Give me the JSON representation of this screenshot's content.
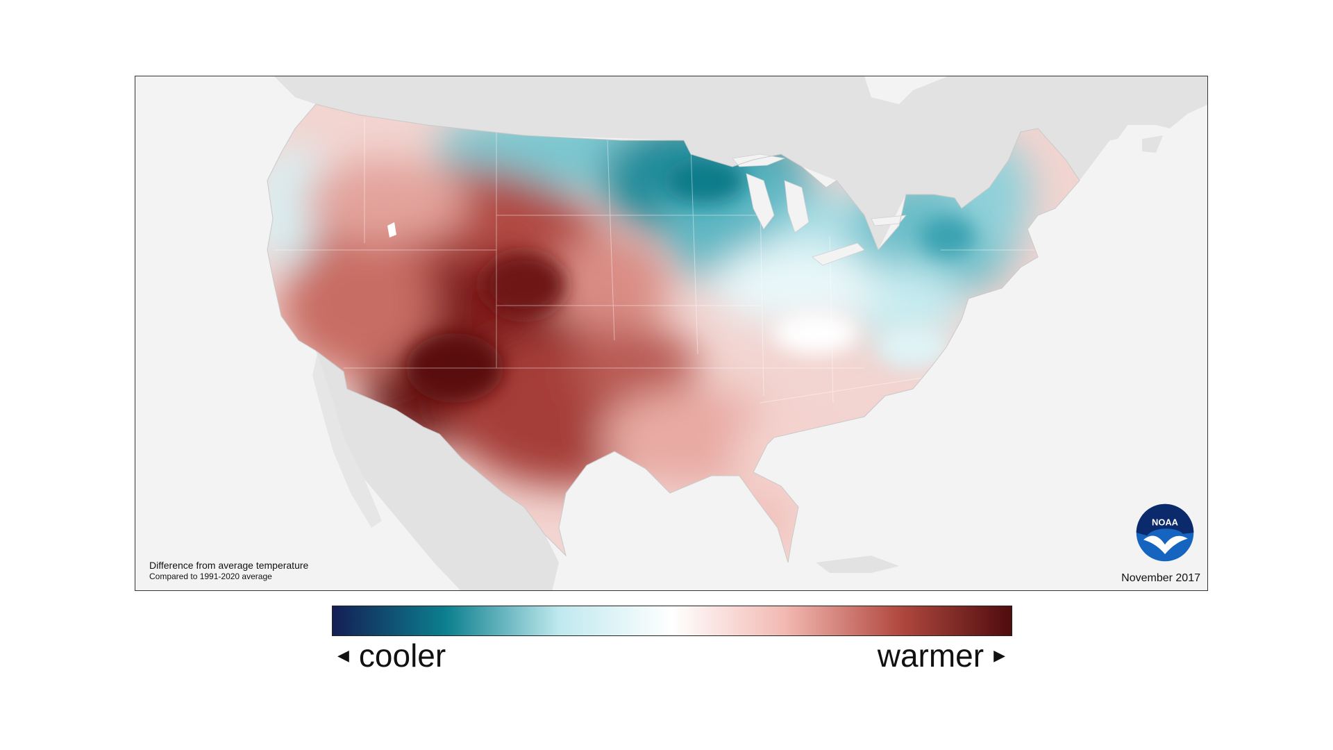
{
  "map": {
    "caption_title": "Difference from average temperature",
    "caption_subtitle": "Compared to 1991-2020 average",
    "date": "November 2017",
    "logo_text": "NOAA",
    "colors": {
      "ocean": "#f3f3f3",
      "land_outside": "#e2e2e2",
      "coolest": "#141f55",
      "cool": "#0c7f8e",
      "light_cool": "#bfe9ee",
      "neutral": "#ffffff",
      "light_warm": "#f2b9b2",
      "warm": "#b24a40",
      "warmest": "#4f0b0d"
    }
  },
  "legend": {
    "cooler_label": "cooler",
    "warmer_label": "warmer",
    "left_arrow": "◀",
    "right_arrow": "▶"
  }
}
